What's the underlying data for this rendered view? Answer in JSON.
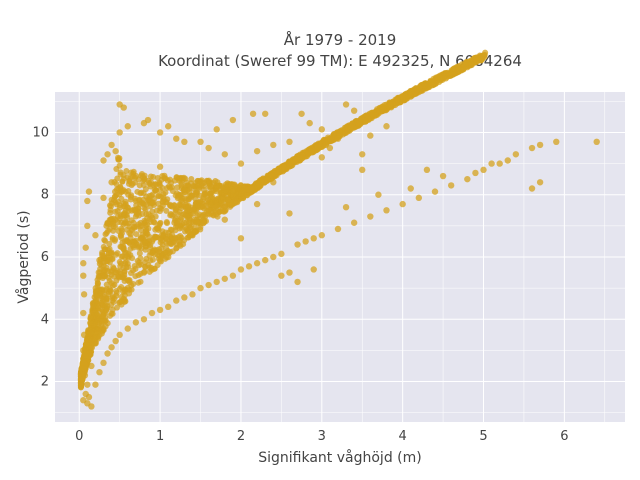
{
  "chart_data": {
    "type": "scatter",
    "title_lines": [
      "År 1979 - 2019",
      "Koordinat (Sweref 99 TM): E 492325, N 6084264"
    ],
    "xlabel": "Signifikant våghöjd (m)",
    "ylabel": "Vågperiod (s)",
    "xlim": [
      -0.3,
      6.75
    ],
    "ylim": [
      0.7,
      11.3
    ],
    "x_ticks": [
      0,
      1,
      2,
      3,
      4,
      5,
      6
    ],
    "y_ticks": [
      2,
      4,
      6,
      8,
      10
    ],
    "grid": true,
    "background": "#e5e5ef",
    "marker_color": "#d4a11e",
    "marker_opacity": 0.75,
    "points_note": "dense cloud; representative sample of visible points",
    "points": [
      [
        0.05,
        1.4
      ],
      [
        0.08,
        1.6
      ],
      [
        0.1,
        1.3
      ],
      [
        0.12,
        1.5
      ],
      [
        0.15,
        1.2
      ],
      [
        0.1,
        1.9
      ],
      [
        0.07,
        2.2
      ],
      [
        0.05,
        2.6
      ],
      [
        0.05,
        3.0
      ],
      [
        0.06,
        3.5
      ],
      [
        0.05,
        4.2
      ],
      [
        0.06,
        4.8
      ],
      [
        0.05,
        5.4
      ],
      [
        0.05,
        5.8
      ],
      [
        0.08,
        6.3
      ],
      [
        0.1,
        7.0
      ],
      [
        0.1,
        7.8
      ],
      [
        0.12,
        8.1
      ],
      [
        0.15,
        2.5
      ],
      [
        0.2,
        1.9
      ],
      [
        0.25,
        2.3
      ],
      [
        0.3,
        2.6
      ],
      [
        0.35,
        2.9
      ],
      [
        0.4,
        3.1
      ],
      [
        0.45,
        3.3
      ],
      [
        0.5,
        3.5
      ],
      [
        0.6,
        3.7
      ],
      [
        0.7,
        3.9
      ],
      [
        0.8,
        4.0
      ],
      [
        0.9,
        4.2
      ],
      [
        1.0,
        4.3
      ],
      [
        1.1,
        4.4
      ],
      [
        1.2,
        4.6
      ],
      [
        1.3,
        4.7
      ],
      [
        1.4,
        4.8
      ],
      [
        1.5,
        5.0
      ],
      [
        1.6,
        5.1
      ],
      [
        1.7,
        5.2
      ],
      [
        1.8,
        5.3
      ],
      [
        1.9,
        5.4
      ],
      [
        2.0,
        5.6
      ],
      [
        2.1,
        5.7
      ],
      [
        2.2,
        5.8
      ],
      [
        2.3,
        5.9
      ],
      [
        2.4,
        6.0
      ],
      [
        2.5,
        6.1
      ],
      [
        2.6,
        5.5
      ],
      [
        2.7,
        6.4
      ],
      [
        2.8,
        6.5
      ],
      [
        2.9,
        6.6
      ],
      [
        3.0,
        6.7
      ],
      [
        3.2,
        6.9
      ],
      [
        3.4,
        7.1
      ],
      [
        3.6,
        7.3
      ],
      [
        3.8,
        7.5
      ],
      [
        4.0,
        7.7
      ],
      [
        4.2,
        7.9
      ],
      [
        4.4,
        8.1
      ],
      [
        4.6,
        8.3
      ],
      [
        4.8,
        8.5
      ],
      [
        5.0,
        8.8
      ],
      [
        5.2,
        9.0
      ],
      [
        5.4,
        9.3
      ],
      [
        5.6,
        9.5
      ],
      [
        5.7,
        9.6
      ],
      [
        5.9,
        9.7
      ],
      [
        6.4,
        9.7
      ],
      [
        5.6,
        8.2
      ],
      [
        5.7,
        8.4
      ],
      [
        5.3,
        9.1
      ],
      [
        5.1,
        9.0
      ],
      [
        4.9,
        8.7
      ],
      [
        0.4,
        8.4
      ],
      [
        0.3,
        7.9
      ],
      [
        0.5,
        10.0
      ],
      [
        0.5,
        10.9
      ],
      [
        0.55,
        10.8
      ],
      [
        0.6,
        10.2
      ],
      [
        0.8,
        10.3
      ],
      [
        0.85,
        10.4
      ],
      [
        1.0,
        10.0
      ],
      [
        1.1,
        10.2
      ],
      [
        1.2,
        9.8
      ],
      [
        1.3,
        9.7
      ],
      [
        0.3,
        9.1
      ],
      [
        0.35,
        9.3
      ],
      [
        0.4,
        9.6
      ],
      [
        0.45,
        9.4
      ],
      [
        1.5,
        9.7
      ],
      [
        1.6,
        9.5
      ],
      [
        1.8,
        9.3
      ],
      [
        2.0,
        9.0
      ],
      [
        2.2,
        9.4
      ],
      [
        2.4,
        9.6
      ],
      [
        2.6,
        9.7
      ],
      [
        2.75,
        10.6
      ],
      [
        2.85,
        10.3
      ],
      [
        3.0,
        10.1
      ],
      [
        3.1,
        9.5
      ],
      [
        3.2,
        9.8
      ],
      [
        3.3,
        10.9
      ],
      [
        3.4,
        10.7
      ],
      [
        3.5,
        9.3
      ],
      [
        3.6,
        9.9
      ],
      [
        3.8,
        10.2
      ],
      [
        2.3,
        10.6
      ],
      [
        2.15,
        10.6
      ],
      [
        1.7,
        10.1
      ],
      [
        1.9,
        10.4
      ],
      [
        3.5,
        8.8
      ],
      [
        3.0,
        9.2
      ],
      [
        3.05,
        9.6
      ],
      [
        1.3,
        7.1
      ],
      [
        1.6,
        7.5
      ],
      [
        1.1,
        6.0
      ],
      [
        0.8,
        5.5
      ],
      [
        0.6,
        5.0
      ],
      [
        0.9,
        6.5
      ],
      [
        1.4,
        6.8
      ],
      [
        1.8,
        7.2
      ],
      [
        2.2,
        7.7
      ],
      [
        2.6,
        7.4
      ],
      [
        2.0,
        6.6
      ],
      [
        2.5,
        5.4
      ],
      [
        2.7,
        5.2
      ],
      [
        2.9,
        5.6
      ],
      [
        3.3,
        7.6
      ],
      [
        3.7,
        8.0
      ],
      [
        4.1,
        8.2
      ],
      [
        4.5,
        8.6
      ],
      [
        4.3,
        8.8
      ],
      [
        2.4,
        8.4
      ],
      [
        1.0,
        8.9
      ],
      [
        0.7,
        8.6
      ],
      [
        0.2,
        6.7
      ],
      [
        0.25,
        5.9
      ]
    ]
  }
}
